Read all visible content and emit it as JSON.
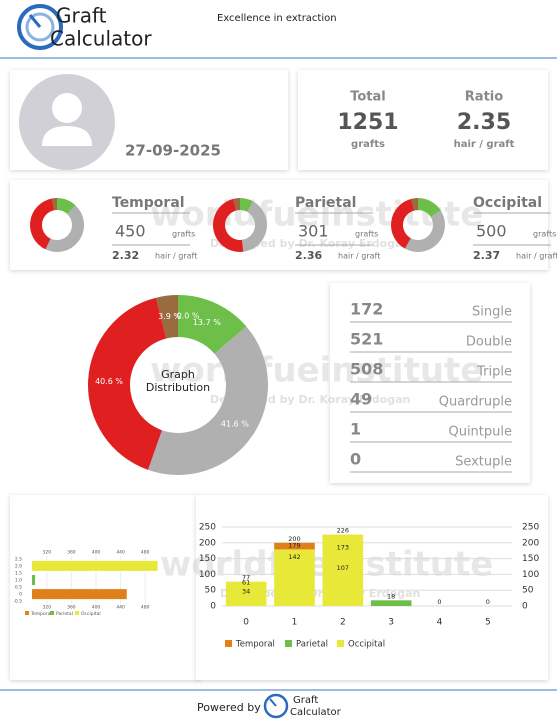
{
  "header": {
    "logo_line1": "Graft",
    "logo_line2": "Calculator",
    "tagline": "Excellence in extraction"
  },
  "profile": {
    "date": "27-09-2025"
  },
  "summary": {
    "total_label": "Total",
    "total": 1251,
    "total_unit": "grafts",
    "ratio_label": "Ratio",
    "ratio": 2.35,
    "ratio_unit": "hair / graft"
  },
  "watermark": {
    "brand": "worldfueinstitute",
    "credit": "Developed by Dr. Koray Erdogan"
  },
  "regions": [
    {
      "name": "Temporal",
      "grafts": 450,
      "grafts_unit": "grafts",
      "ratio": 2.32,
      "ratio_unit": "hair / graft",
      "donut": {
        "type": "pie",
        "values": [
          12,
          45,
          40,
          3
        ],
        "colors": [
          "#6dbf4a",
          "#b0b0b0",
          "#e02020",
          "#9a6b3e"
        ]
      }
    },
    {
      "name": "Parietal",
      "grafts": 301,
      "grafts_unit": "grafts",
      "ratio": 2.36,
      "ratio_unit": "hair / graft",
      "donut": {
        "type": "pie",
        "values": [
          8,
          40,
          48,
          4
        ],
        "colors": [
          "#6dbf4a",
          "#b0b0b0",
          "#e02020",
          "#9a6b3e"
        ]
      }
    },
    {
      "name": "Occipital",
      "grafts": 500,
      "grafts_unit": "grafts",
      "ratio": 2.37,
      "ratio_unit": "hair / graft",
      "donut": {
        "type": "pie",
        "values": [
          16,
          42,
          38,
          4
        ],
        "colors": [
          "#6dbf4a",
          "#b0b0b0",
          "#e02020",
          "#9a6b3e"
        ]
      }
    }
  ],
  "distribution": {
    "type": "pie",
    "title_lines": [
      "Graph",
      "Distribution"
    ],
    "values": [
      13.7,
      41.6,
      40.6,
      3.9,
      0.0
    ],
    "value_labels": [
      "13.7 %",
      "41.6 %",
      "40.6 %",
      "3.9 %",
      "0.0 %"
    ],
    "colors": [
      "#6dbf4a",
      "#b0b0b0",
      "#e02020",
      "#9a6b3e",
      "#e0801a"
    ]
  },
  "counts": [
    {
      "value": 172,
      "label": "Single"
    },
    {
      "value": 521,
      "label": "Double"
    },
    {
      "value": 508,
      "label": "Triple"
    },
    {
      "value": 49,
      "label": "Quardruple"
    },
    {
      "value": 1,
      "label": "Quintpule"
    },
    {
      "value": 0,
      "label": "Sextuple"
    }
  ],
  "region_chart": {
    "type": "hbar",
    "categories": [
      "Temporal",
      "Parietal",
      "Occipital"
    ],
    "values": [
      450,
      301,
      500
    ],
    "colors": [
      "#e0801a",
      "#6dbf4a",
      "#e8e838"
    ],
    "xlim": [
      296,
      504
    ],
    "xticks": [
      320,
      360,
      400,
      440,
      480
    ],
    "ylim": [
      -0.7,
      2.7
    ],
    "yticks": [
      2.5,
      {
        "value": 2,
        "label": "2.0"
      },
      1.5,
      {
        "value": 1,
        "label": "1.0"
      },
      0.5,
      0,
      -0.5
    ]
  },
  "bar_chart": {
    "type": "stacked_bar",
    "x": [
      0,
      1,
      2,
      3,
      4,
      5
    ],
    "series": [
      {
        "name": "Temporal",
        "color": "#e0801a",
        "values": [
          0,
          21,
          0,
          0,
          0,
          0
        ]
      },
      {
        "name": "Parietal",
        "color": "#6dbf4a",
        "values": [
          0,
          0,
          0,
          18,
          0,
          0
        ]
      },
      {
        "name": "Occipital",
        "color": "#e8e838",
        "values": [
          77,
          179,
          226,
          0,
          0,
          0
        ]
      }
    ],
    "labels": [
      [
        77,
        61,
        34
      ],
      [
        200,
        179,
        142
      ],
      [
        226,
        173,
        107
      ],
      [
        18
      ],
      [
        0
      ],
      [
        0
      ]
    ],
    "ylim": [
      0,
      250
    ],
    "yticks": [
      0,
      50,
      100,
      150,
      200,
      250
    ],
    "y2lim": [
      0,
      250
    ],
    "y2ticks": [
      0,
      50,
      100,
      150,
      200,
      250
    ],
    "grid": true
  },
  "footer": {
    "powered": "Powered by",
    "logo_line1": "Graft",
    "logo_line2": "Calculator"
  }
}
